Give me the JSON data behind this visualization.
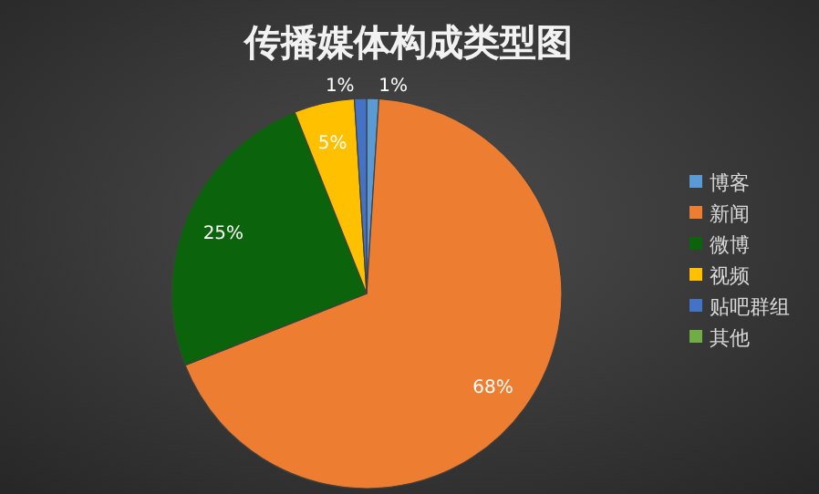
{
  "chart_data": {
    "type": "pie",
    "title": "传播媒体构成类型图",
    "categories": [
      "博客",
      "新闻",
      "微博",
      "视频",
      "贴吧群组",
      "其他"
    ],
    "values": [
      1,
      68,
      25,
      5,
      1,
      0
    ],
    "colors": [
      "#5b9bd5",
      "#ed7d31",
      "#0b640b",
      "#ffc000",
      "#4472c4",
      "#70ad47"
    ],
    "value_labels": [
      "1%",
      "68%",
      "25%",
      "5%",
      "1%",
      null
    ],
    "legend": "right"
  }
}
